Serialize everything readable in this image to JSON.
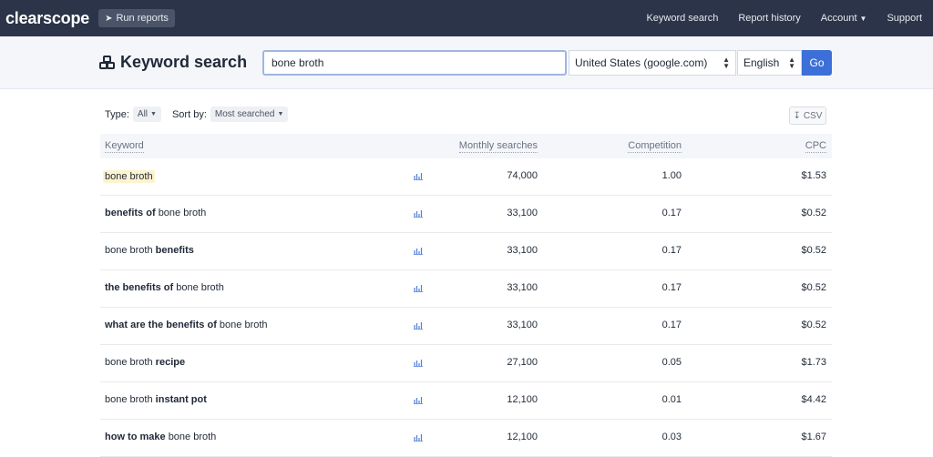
{
  "nav": {
    "logo": "clearscope",
    "run_reports": "Run reports",
    "links": [
      "Keyword search",
      "Report history",
      "Account",
      "Support"
    ]
  },
  "search": {
    "title": "Keyword search",
    "query": "bone broth",
    "country": "United States (google.com)",
    "language": "English",
    "go": "Go"
  },
  "filters": {
    "type_label": "Type:",
    "type_value": "All",
    "sort_label": "Sort by:",
    "sort_value": "Most searched",
    "csv": "CSV"
  },
  "table": {
    "headers": [
      "Keyword",
      "Monthly searches",
      "Competition",
      "CPC"
    ],
    "rows": [
      {
        "pre": "",
        "bold_pre": "",
        "base": "bone broth",
        "bold_post": "",
        "searches": "74,000",
        "competition": "1.00",
        "cpc": "$1.53",
        "highlight": true
      },
      {
        "pre": "",
        "bold_pre": "benefits of",
        "base": "bone broth",
        "bold_post": "",
        "searches": "33,100",
        "competition": "0.17",
        "cpc": "$0.52"
      },
      {
        "pre": "",
        "bold_pre": "",
        "base": "bone broth",
        "bold_post": "benefits",
        "searches": "33,100",
        "competition": "0.17",
        "cpc": "$0.52"
      },
      {
        "pre": "",
        "bold_pre": "the benefits of",
        "base": "bone broth",
        "bold_post": "",
        "searches": "33,100",
        "competition": "0.17",
        "cpc": "$0.52"
      },
      {
        "pre": "",
        "bold_pre": "what are the benefits of",
        "base": "bone broth",
        "bold_post": "",
        "searches": "33,100",
        "competition": "0.17",
        "cpc": "$0.52"
      },
      {
        "pre": "",
        "bold_pre": "",
        "base": "bone broth",
        "bold_post": "recipe",
        "searches": "27,100",
        "competition": "0.05",
        "cpc": "$1.73"
      },
      {
        "pre": "",
        "bold_pre": "",
        "base": "bone broth",
        "bold_post": "instant pot",
        "searches": "12,100",
        "competition": "0.01",
        "cpc": "$4.42"
      },
      {
        "pre": "",
        "bold_pre": "how to make",
        "base": "bone broth",
        "bold_post": "",
        "searches": "12,100",
        "competition": "0.03",
        "cpc": "$1.67"
      }
    ]
  },
  "icons": {
    "run_reports": "paper-plane-icon",
    "title": "cubes-icon",
    "trend": "bar-chart-icon",
    "csv": "download-icon"
  },
  "colors": {
    "nav_bg": "#2b3448",
    "accent": "#3d6fd9",
    "highlight": "#fdf3cf"
  }
}
